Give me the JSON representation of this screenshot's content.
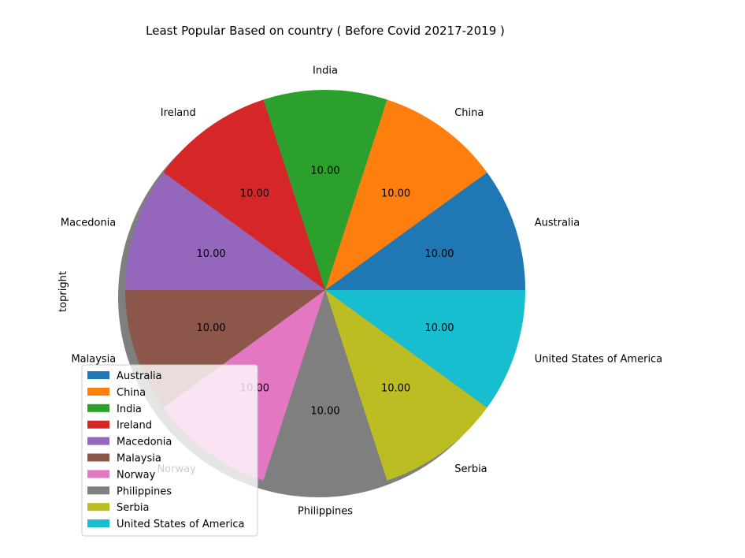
{
  "chart_data": {
    "type": "pie",
    "title": "Least Popular  Based on country ( Before Covid 20217-2019 )",
    "ylabel": "topright",
    "shadow": true,
    "legend_position": "lower-left",
    "start_angle_deg": 0,
    "direction": "counterclockwise",
    "slices": [
      {
        "label": "Australia",
        "value": 10.0,
        "display": "10.00",
        "color": "#1f77b4"
      },
      {
        "label": "China",
        "value": 10.0,
        "display": "10.00",
        "color": "#ff7f0e"
      },
      {
        "label": "India",
        "value": 10.0,
        "display": "10.00",
        "color": "#2ca02c"
      },
      {
        "label": "Ireland",
        "value": 10.0,
        "display": "10.00",
        "color": "#d62728"
      },
      {
        "label": "Macedonia",
        "value": 10.0,
        "display": "10.00",
        "color": "#9467bd"
      },
      {
        "label": "Malaysia",
        "value": 10.0,
        "display": "10.00",
        "color": "#8c564b"
      },
      {
        "label": "Norway",
        "value": 10.0,
        "display": "10.00",
        "color": "#e377c2"
      },
      {
        "label": "Philippines",
        "value": 10.0,
        "display": "10.00",
        "color": "#7f7f7f"
      },
      {
        "label": "Serbia",
        "value": 10.0,
        "display": "10.00",
        "color": "#bcbd22"
      },
      {
        "label": "United States of America",
        "value": 10.0,
        "display": "10.00",
        "color": "#17becf"
      }
    ]
  }
}
